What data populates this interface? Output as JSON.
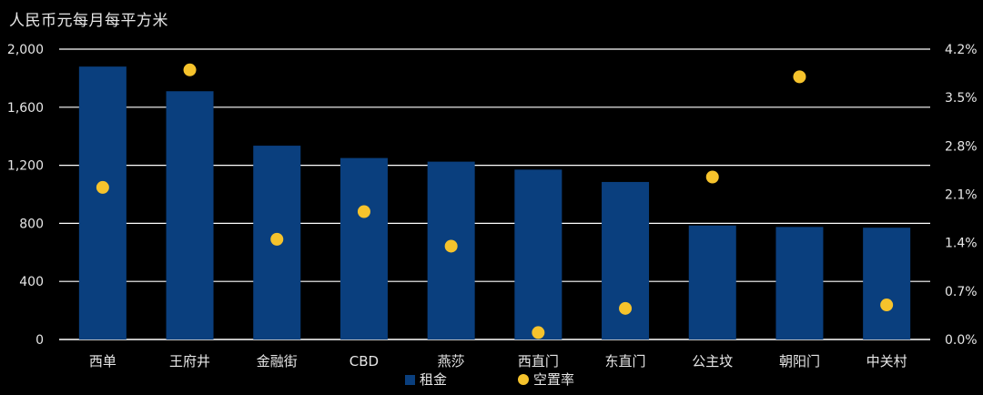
{
  "chart_data": {
    "type": "bar+scatter",
    "unit_label": "人民币元每月每平方米",
    "categories": [
      "西单",
      "王府井",
      "金融街",
      "CBD",
      "燕莎",
      "西直门",
      "东直门",
      "公主坟",
      "朝阳门",
      "中关村"
    ],
    "series": [
      {
        "name": "租金",
        "type": "bar",
        "axis": "left",
        "values": [
          1880,
          1710,
          1335,
          1250,
          1225,
          1170,
          1085,
          785,
          775,
          770
        ]
      },
      {
        "name": "空置率",
        "type": "scatter",
        "axis": "right",
        "values": [
          2.2,
          3.9,
          1.45,
          1.85,
          1.35,
          0.1,
          0.45,
          2.35,
          3.8,
          0.5
        ]
      }
    ],
    "left_axis": {
      "min": 0,
      "max": 2000,
      "ticks": [
        0,
        400,
        800,
        1200,
        1600,
        2000
      ],
      "tick_labels": [
        "0",
        "400",
        "800",
        "1,200",
        "1,600",
        "2,000"
      ]
    },
    "right_axis": {
      "min": 0,
      "max": 4.2,
      "ticks": [
        0,
        0.7,
        1.4,
        2.1,
        2.8,
        3.5,
        4.2
      ],
      "tick_labels": [
        "0.0%",
        "0.7%",
        "1.4%",
        "2.1%",
        "2.8%",
        "3.5%",
        "4.2%"
      ]
    },
    "grid": true,
    "legend_position": "bottom",
    "colors": {
      "bar": "#0a3f7e",
      "dot": "#f6c32c",
      "grid": "#ffffff",
      "text": "#e6e6e6",
      "background": "#000000"
    }
  }
}
